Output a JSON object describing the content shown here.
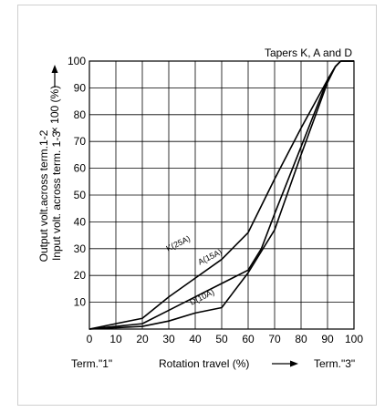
{
  "chart_data": {
    "type": "line",
    "title": "Tapers K, A and D",
    "xlabel": "Rotation travel (%)",
    "x_left_label": "Term.\"1\"",
    "x_right_label": "Term.\"3\"",
    "ylabel_line1": "Output volt.across term.1-2",
    "ylabel_line2": "Input volt. across term. 1-3",
    "ylabel_multiplier": "× 100 (%)",
    "xlim": [
      0,
      100
    ],
    "ylim": [
      0,
      100
    ],
    "x_ticks": [
      0,
      10,
      20,
      30,
      40,
      50,
      60,
      70,
      80,
      90,
      100
    ],
    "y_ticks": [
      10,
      20,
      30,
      40,
      50,
      60,
      70,
      80,
      90,
      100
    ],
    "grid": true,
    "series": [
      {
        "name": "K(25A)",
        "x": [
          0,
          20,
          30,
          40,
          50,
          60,
          70,
          80,
          90,
          93,
          95,
          100
        ],
        "y": [
          0,
          4,
          12,
          19,
          26,
          36,
          56,
          75,
          93,
          98,
          100,
          100
        ]
      },
      {
        "name": "A(15A)",
        "x": [
          0,
          20,
          30,
          40,
          50,
          60,
          65,
          70,
          80,
          90,
          93,
          95,
          100
        ],
        "y": [
          0,
          2,
          7,
          12,
          17,
          22,
          30,
          43,
          68,
          93,
          98,
          100,
          100
        ]
      },
      {
        "name": "D(10A)",
        "x": [
          0,
          20,
          30,
          40,
          50,
          60,
          70,
          80,
          90,
          93,
          95,
          100
        ],
        "y": [
          0,
          1,
          3,
          6,
          8,
          21,
          37,
          65,
          92,
          98,
          100,
          100
        ]
      }
    ]
  }
}
